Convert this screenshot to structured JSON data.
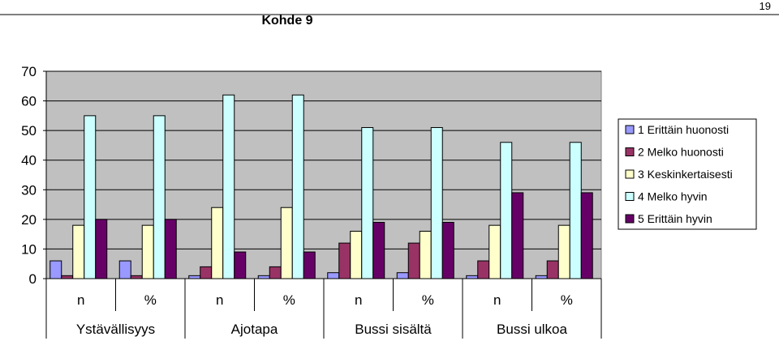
{
  "page_number": "19",
  "chart_data": {
    "type": "bar",
    "title": "Kohde 9",
    "xlabel": "",
    "ylabel": "",
    "ylim": [
      0,
      70
    ],
    "yticks": [
      0,
      10,
      20,
      30,
      40,
      50,
      60,
      70
    ],
    "grid": true,
    "legend_position": "right",
    "plot_background": "#c0c0c0",
    "categories": [
      "n",
      "%",
      "n",
      "%",
      "n",
      "%",
      "n",
      "%"
    ],
    "groups": [
      "Ystävällisyys",
      "Ajotapa",
      "Bussi sisältä",
      "Bussi ulkoa"
    ],
    "series": [
      {
        "name": "1 Erittäin huonosti",
        "color": "#9999ff",
        "values": [
          6,
          6,
          1,
          1,
          2,
          2,
          1,
          1
        ]
      },
      {
        "name": "2 Melko huonosti",
        "color": "#993366",
        "values": [
          1,
          1,
          4,
          4,
          12,
          12,
          6,
          6
        ]
      },
      {
        "name": "3 Keskinkertaisesti",
        "color": "#ffffcc",
        "values": [
          18,
          18,
          24,
          24,
          16,
          16,
          18,
          18
        ]
      },
      {
        "name": "4 Melko hyvin",
        "color": "#ccffff",
        "values": [
          55,
          55,
          62,
          62,
          51,
          51,
          46,
          46
        ]
      },
      {
        "name": "5 Erittäin hyvin",
        "color": "#660066",
        "values": [
          20,
          20,
          9,
          9,
          19,
          19,
          29,
          29
        ]
      }
    ]
  }
}
